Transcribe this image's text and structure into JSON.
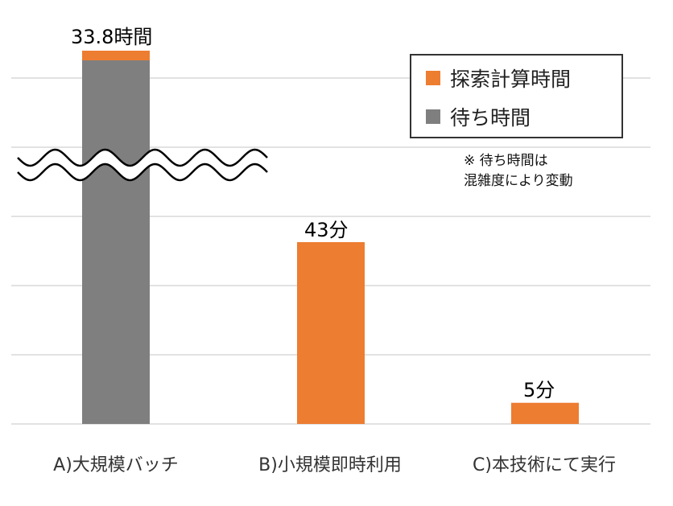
{
  "chart_data": {
    "type": "bar",
    "stacked": true,
    "categories": [
      "A)大規模バッチ",
      "B)小規模即時利用",
      "C)本技術にて実行"
    ],
    "series": [
      {
        "name": "待ち時間",
        "color": "#7f7f7f"
      },
      {
        "name": "探索計算時間",
        "color": "#ed7d31"
      }
    ],
    "bars": [
      {
        "category": "A)大規模バッチ",
        "total_label": "33.8時間",
        "axis_break": true
      },
      {
        "category": "B)小規模即時利用",
        "total_label": "43分",
        "minutes": 43
      },
      {
        "category": "C)本技術にて実行",
        "total_label": "5分",
        "minutes": 5
      }
    ],
    "grid": true,
    "legend_position": "top-right",
    "legend": [
      "探索計算時間",
      "待ち時間"
    ],
    "note": [
      "※ 待ち時間は",
      "混雑度により変動"
    ]
  }
}
